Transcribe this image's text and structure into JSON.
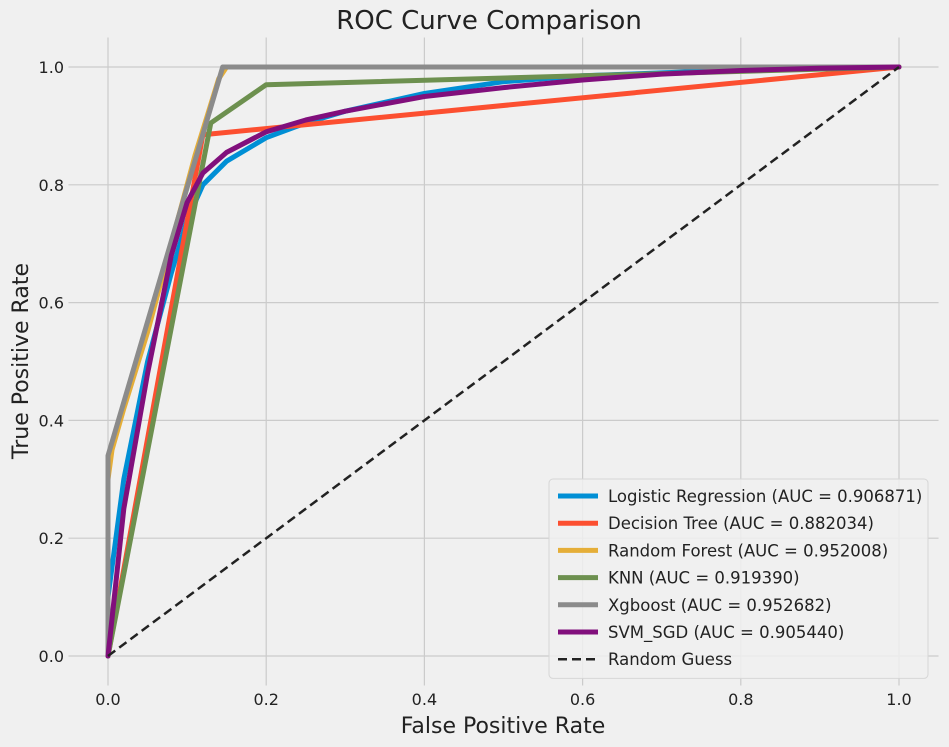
{
  "chart_data": {
    "type": "line",
    "title": "ROC Curve Comparison",
    "xlabel": "False Positive Rate",
    "ylabel": "True Positive Rate",
    "xlim": [
      -0.05,
      1.05
    ],
    "ylim": [
      -0.05,
      1.05
    ],
    "grid": true,
    "legend_position": "lower-right",
    "xticks": [
      0.0,
      0.2,
      0.4,
      0.6,
      0.8,
      1.0
    ],
    "yticks": [
      0.0,
      0.2,
      0.4,
      0.6,
      0.8,
      1.0
    ],
    "xtick_labels": [
      "0.0",
      "0.2",
      "0.4",
      "0.6",
      "0.8",
      "1.0"
    ],
    "ytick_labels": [
      "0.0",
      "0.2",
      "0.4",
      "0.6",
      "0.8",
      "1.0"
    ],
    "series": [
      {
        "name": "Logistic Regression (AUC = 0.906871)",
        "color": "#008fd5",
        "style": "solid",
        "x": [
          0,
          0.0,
          0.02,
          0.05,
          0.08,
          0.1,
          0.12,
          0.15,
          0.2,
          0.25,
          0.3,
          0.4,
          0.5,
          0.6,
          0.7,
          0.8,
          0.9,
          1.0
        ],
        "y": [
          0,
          0.1,
          0.3,
          0.5,
          0.65,
          0.74,
          0.8,
          0.84,
          0.88,
          0.905,
          0.925,
          0.955,
          0.975,
          0.985,
          0.99,
          0.995,
          0.998,
          1.0
        ]
      },
      {
        "name": "Decision Tree (AUC = 0.882034)",
        "color": "#fc4f30",
        "style": "solid",
        "x": [
          0,
          0.12,
          1.0
        ],
        "y": [
          0,
          0.885,
          1.0
        ]
      },
      {
        "name": "Random Forest (AUC = 0.952008)",
        "color": "#e5ae38",
        "style": "solid",
        "x": [
          0,
          0.0,
          0.005,
          0.02,
          0.05,
          0.08,
          0.11,
          0.14,
          0.15,
          0.3,
          0.6,
          1.0
        ],
        "y": [
          0,
          0.3,
          0.35,
          0.42,
          0.55,
          0.7,
          0.85,
          0.98,
          1.0,
          1.0,
          1.0,
          1.0
        ]
      },
      {
        "name": "KNN (AUC = 0.919390)",
        "color": "#6d904f",
        "style": "solid",
        "x": [
          0,
          0.13,
          0.2,
          0.6,
          1.0
        ],
        "y": [
          0,
          0.905,
          0.97,
          0.985,
          1.0
        ]
      },
      {
        "name": "Xgboost (AUC = 0.952682)",
        "color": "#8b8b8b",
        "style": "solid",
        "x": [
          0,
          0.0,
          0.0,
          0.145,
          0.15,
          0.4,
          1.0
        ],
        "y": [
          0,
          0.2,
          0.34,
          1.0,
          1.0,
          1.0,
          1.0
        ]
      },
      {
        "name": "SVM_SGD (AUC = 0.905440)",
        "color": "#810f7c",
        "style": "solid",
        "x": [
          0,
          0.02,
          0.05,
          0.08,
          0.1,
          0.12,
          0.15,
          0.2,
          0.25,
          0.3,
          0.4,
          0.5,
          0.6,
          0.7,
          0.8,
          0.9,
          1.0
        ],
        "y": [
          0,
          0.25,
          0.48,
          0.68,
          0.77,
          0.82,
          0.855,
          0.89,
          0.91,
          0.925,
          0.95,
          0.965,
          0.978,
          0.988,
          0.994,
          0.998,
          1.0
        ]
      },
      {
        "name": "Random Guess",
        "color": "#222222",
        "style": "dashed",
        "x": [
          0,
          1
        ],
        "y": [
          0,
          1
        ]
      }
    ]
  }
}
